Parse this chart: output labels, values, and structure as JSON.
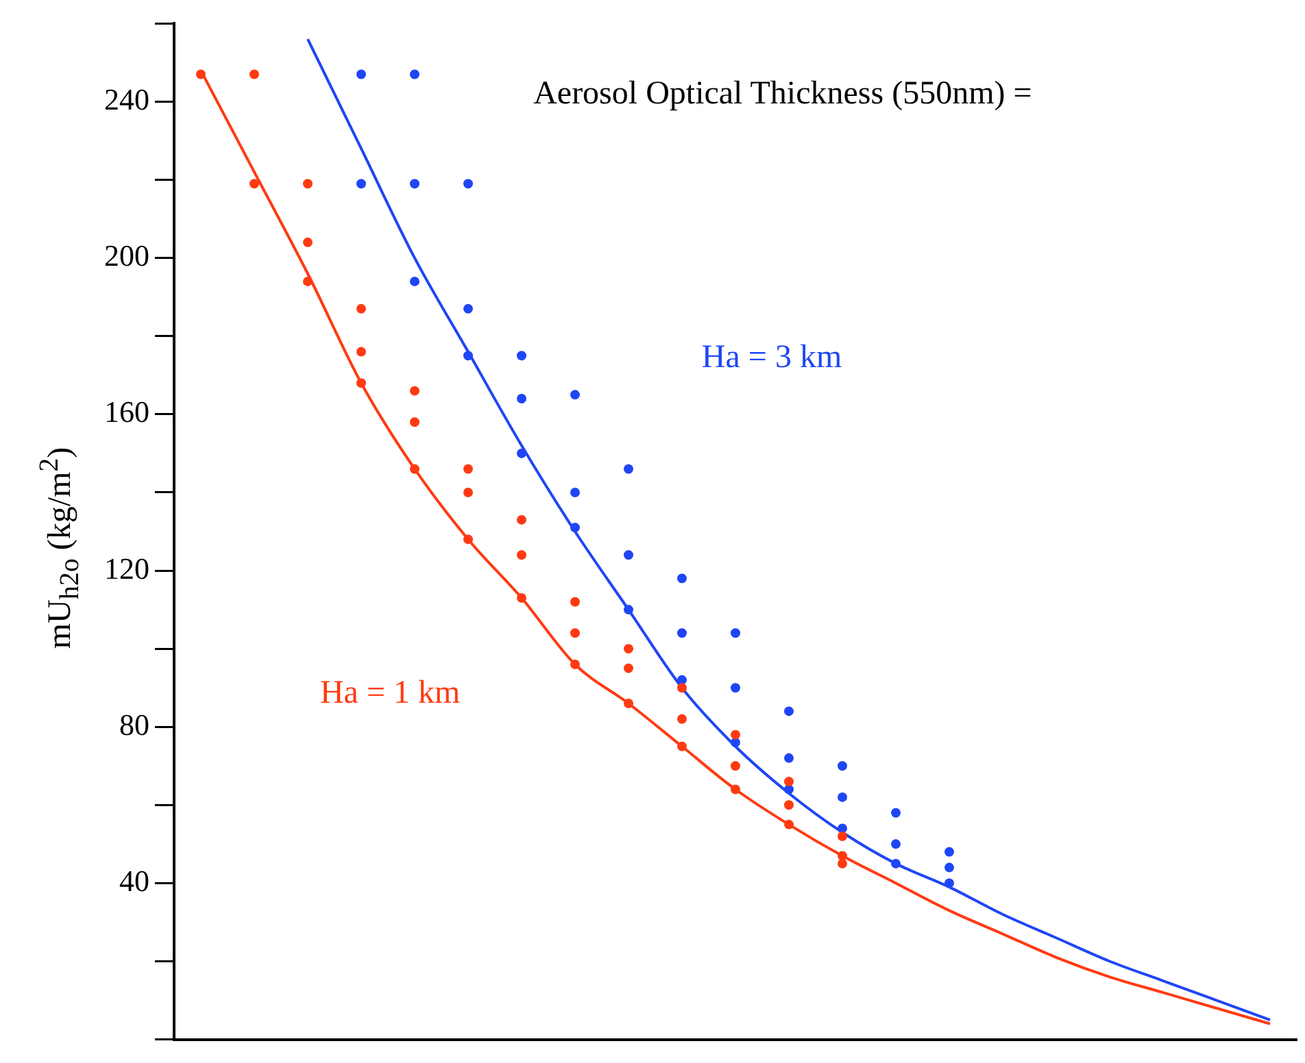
{
  "chart_data": {
    "type": "scatter",
    "ylabel": "mU$_{h2o}$ (kg/m$^{2}$)",
    "annotations": [
      "Aerosol Optical Thickness (550nm) ="
    ],
    "categories": [
      null,
      null,
      null,
      null,
      null,
      null,
      null,
      null,
      null,
      null,
      null,
      null,
      null,
      null,
      null,
      null,
      null,
      null,
      null,
      null,
      null
    ],
    "ylim": [
      0,
      260
    ],
    "yticks": [
      {
        "value": 0,
        "label": null
      },
      {
        "value": 20,
        "label": null
      },
      40,
      {
        "value": 60,
        "label": null
      },
      80,
      {
        "value": 100,
        "label": null
      },
      120,
      {
        "value": 140,
        "label": null
      },
      160,
      {
        "value": 180,
        "label": null
      },
      200,
      {
        "value": 220,
        "label": null
      },
      240,
      {
        "value": 260,
        "label": null
      }
    ],
    "tick_labels": "y",
    "grid": false,
    "line_style": "solid",
    "series": [
      {
        "marker": "circle",
        "color": "#ff3a12",
        "values": [
          247,
          219,
          194,
          168,
          146,
          128,
          113,
          96,
          86,
          75,
          64,
          55,
          45,
          null,
          null,
          null,
          null,
          null,
          null,
          null,
          null
        ]
      },
      {
        "marker": "circle",
        "color": "#ff3a12",
        "values": [
          null,
          247,
          204,
          176,
          158,
          140,
          124,
          104,
          95,
          82,
          70,
          60,
          47,
          null,
          null,
          null,
          null,
          null,
          null,
          null,
          null
        ]
      },
      {
        "marker": "circle",
        "color": "#ff3a12",
        "values": [
          null,
          null,
          219,
          187,
          166,
          146,
          133,
          112,
          100,
          90,
          78,
          66,
          52,
          null,
          null,
          null,
          null,
          null,
          null,
          null,
          null
        ]
      },
      {
        "marker": "circle",
        "color": "#1f46f5",
        "values": [
          null,
          null,
          null,
          219,
          194,
          175,
          150,
          131,
          110,
          92,
          76,
          64,
          54,
          45,
          40,
          null,
          null,
          null,
          null,
          null,
          null
        ]
      },
      {
        "marker": "circle",
        "color": "#1f46f5",
        "values": [
          null,
          null,
          null,
          247,
          219,
          187,
          164,
          140,
          124,
          104,
          90,
          72,
          62,
          50,
          44,
          null,
          null,
          null,
          null,
          null,
          null
        ]
      },
      {
        "marker": "circle",
        "color": "#1f46f5",
        "values": [
          null,
          null,
          null,
          null,
          247,
          219,
          175,
          165,
          146,
          118,
          104,
          84,
          70,
          58,
          48,
          null,
          null,
          null,
          null,
          null,
          null
        ]
      },
      {
        "type": "line",
        "name": "Ha = 1 km",
        "color": "#ff3a12",
        "values": [
          248,
          222,
          196,
          168,
          146,
          128,
          113,
          96,
          86,
          75,
          64,
          55,
          47,
          40,
          33,
          27,
          21,
          16,
          12,
          8,
          4
        ]
      },
      {
        "type": "line",
        "name": "Ha = 3 km",
        "color": "#1f46f5",
        "values": [
          null,
          null,
          256,
          228,
          200,
          176,
          152,
          130,
          110,
          90,
          75,
          63,
          53,
          45,
          39,
          32,
          26,
          20,
          15,
          10,
          5
        ]
      }
    ]
  }
}
